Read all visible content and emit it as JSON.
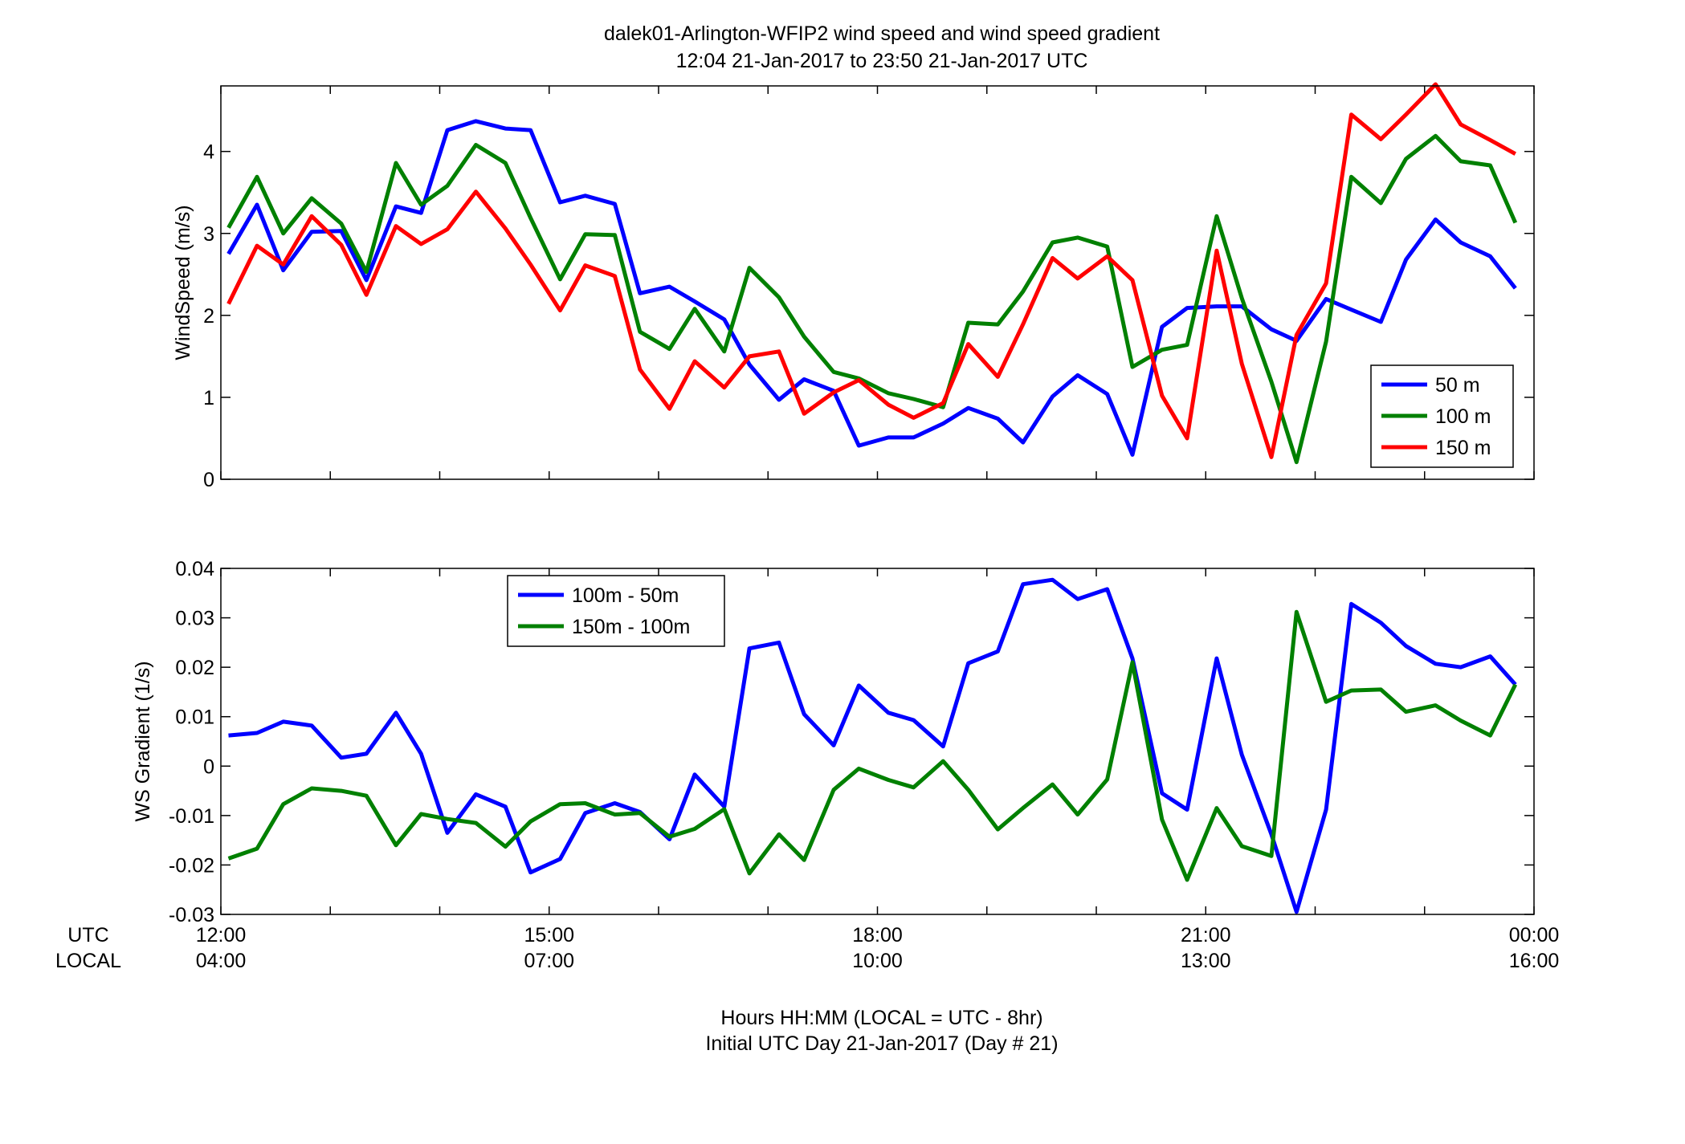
{
  "figure": {
    "title_line1": "dalek01-Arlington-WFIP2  wind speed and wind speed gradient",
    "title_line2": "12:04 21-Jan-2017 to 23:50 21-Jan-2017  UTC",
    "xlabel_line1": "Hours HH:MM  (LOCAL = UTC - 8hr)",
    "xlabel_line2": "Initial UTC Day 21-Jan-2017 (Day # 21)",
    "utc_row_label": "UTC",
    "local_row_label": "LOCAL",
    "utc_ticks": [
      "12:00",
      "15:00",
      "18:00",
      "21:00",
      "00:00"
    ],
    "local_ticks": [
      "04:00",
      "07:00",
      "10:00",
      "13:00",
      "16:00"
    ]
  },
  "chart_data": [
    {
      "type": "line",
      "ylabel": "WindSpeed (m/s)",
      "xlim": [
        12.0,
        24.0
      ],
      "ylim": [
        0,
        4.8
      ],
      "yticks": [
        0,
        1,
        2,
        3,
        4
      ],
      "ytick_labels": [
        "0",
        "1",
        "2",
        "3",
        "4"
      ],
      "legend_position": "bottom-right",
      "x": [
        12.07,
        12.33,
        12.57,
        12.83,
        13.1,
        13.33,
        13.6,
        13.83,
        14.07,
        14.33,
        14.6,
        14.83,
        15.1,
        15.33,
        15.6,
        15.83,
        16.1,
        16.33,
        16.6,
        16.83,
        17.1,
        17.33,
        17.6,
        17.83,
        18.1,
        18.33,
        18.6,
        18.83,
        19.1,
        19.33,
        19.6,
        19.83,
        20.1,
        20.33,
        20.6,
        20.83,
        21.1,
        21.33,
        21.6,
        21.83,
        22.1,
        22.33,
        22.6,
        22.83,
        23.1,
        23.33,
        23.6,
        23.83
      ],
      "series": [
        {
          "name": "50 m",
          "color": "#0000ff",
          "values": [
            2.75,
            3.35,
            2.55,
            3.02,
            3.03,
            2.43,
            3.33,
            3.25,
            4.26,
            4.37,
            4.28,
            4.26,
            3.38,
            3.46,
            3.36,
            2.27,
            2.35,
            2.17,
            1.95,
            1.4,
            0.97,
            1.22,
            1.08,
            0.41,
            0.51,
            0.51,
            0.68,
            0.87,
            0.74,
            0.45,
            1.01,
            1.27,
            1.04,
            0.3,
            1.86,
            2.09,
            2.11,
            2.11,
            1.83,
            1.69,
            2.2,
            2.07,
            1.92,
            2.68,
            3.17,
            2.89,
            2.72,
            2.33
          ]
        },
        {
          "name": "100 m",
          "color": "#008000",
          "values": [
            3.07,
            3.69,
            3.0,
            3.43,
            3.12,
            2.53,
            3.86,
            3.35,
            3.58,
            4.08,
            3.86,
            3.19,
            2.44,
            2.99,
            2.98,
            1.8,
            1.59,
            2.08,
            1.56,
            2.58,
            2.22,
            1.74,
            1.31,
            1.23,
            1.05,
            0.98,
            0.88,
            1.91,
            1.89,
            2.29,
            2.89,
            2.95,
            2.84,
            1.37,
            1.58,
            1.64,
            3.21,
            2.21,
            1.19,
            0.21,
            1.68,
            3.69,
            3.37,
            3.91,
            4.19,
            3.88,
            3.83,
            3.13
          ]
        },
        {
          "name": "150 m",
          "color": "#ff0000",
          "values": [
            2.14,
            2.85,
            2.62,
            3.21,
            2.86,
            2.25,
            3.09,
            2.87,
            3.05,
            3.51,
            3.06,
            2.62,
            2.06,
            2.61,
            2.48,
            1.34,
            0.86,
            1.44,
            1.12,
            1.5,
            1.56,
            0.8,
            1.06,
            1.21,
            0.91,
            0.75,
            0.93,
            1.65,
            1.25,
            1.89,
            2.7,
            2.45,
            2.72,
            2.43,
            1.02,
            0.5,
            2.79,
            1.41,
            0.27,
            1.76,
            2.39,
            4.45,
            4.15,
            4.45,
            4.82,
            4.33,
            4.14,
            3.97
          ]
        }
      ]
    },
    {
      "type": "line",
      "ylabel": "WS Gradient (1/s)",
      "xlim": [
        12.0,
        24.0
      ],
      "ylim": [
        -0.03,
        0.04
      ],
      "yticks": [
        -0.03,
        -0.02,
        -0.01,
        0,
        0.01,
        0.02,
        0.03,
        0.04
      ],
      "ytick_labels": [
        "-0.03",
        "-0.02",
        "-0.01",
        "0",
        "0.01",
        "0.02",
        "0.03",
        "0.04"
      ],
      "legend_position": "top-left",
      "x": [
        12.07,
        12.33,
        12.57,
        12.83,
        13.1,
        13.33,
        13.6,
        13.83,
        14.07,
        14.33,
        14.6,
        14.83,
        15.1,
        15.33,
        15.6,
        15.83,
        16.1,
        16.33,
        16.6,
        16.83,
        17.1,
        17.33,
        17.6,
        17.83,
        18.1,
        18.33,
        18.6,
        18.83,
        19.1,
        19.33,
        19.6,
        19.83,
        20.1,
        20.33,
        20.6,
        20.83,
        21.1,
        21.33,
        21.6,
        21.83,
        22.1,
        22.33,
        22.6,
        22.83,
        23.1,
        23.33,
        23.6,
        23.83
      ],
      "series": [
        {
          "name": "100m - 50m",
          "color": "#0000ff",
          "values": [
            0.0062,
            0.0067,
            0.009,
            0.0082,
            0.0017,
            0.0025,
            0.0108,
            0.0025,
            -0.0135,
            -0.0057,
            -0.0082,
            -0.0215,
            -0.0188,
            -0.0095,
            -0.0075,
            -0.0093,
            -0.0148,
            -0.0017,
            -0.0082,
            0.0238,
            0.025,
            0.0105,
            0.0042,
            0.0163,
            0.0108,
            0.0093,
            0.004,
            0.0208,
            0.0232,
            0.0368,
            0.0377,
            0.0338,
            0.0358,
            0.0218,
            -0.0055,
            -0.0088,
            0.0218,
            0.0023,
            -0.0138,
            -0.0295,
            -0.0088,
            0.0328,
            0.029,
            0.0243,
            0.0207,
            0.02,
            0.0222,
            0.0165
          ]
        },
        {
          "name": "150m - 100m",
          "color": "#008000",
          "values": [
            -0.0187,
            -0.0167,
            -0.0077,
            -0.0045,
            -0.005,
            -0.006,
            -0.016,
            -0.0097,
            -0.0107,
            -0.0115,
            -0.0163,
            -0.0112,
            -0.0077,
            -0.0075,
            -0.0098,
            -0.0095,
            -0.0143,
            -0.0127,
            -0.0087,
            -0.0217,
            -0.0138,
            -0.019,
            -0.0048,
            -0.0005,
            -0.0028,
            -0.0043,
            0.001,
            -0.0048,
            -0.0128,
            -0.0085,
            -0.0037,
            -0.0098,
            -0.0027,
            0.021,
            -0.0108,
            -0.023,
            -0.0085,
            -0.0162,
            -0.0182,
            0.0312,
            0.013,
            0.0153,
            0.0155,
            0.011,
            0.0123,
            0.0092,
            0.0062,
            0.0165
          ]
        }
      ]
    }
  ]
}
